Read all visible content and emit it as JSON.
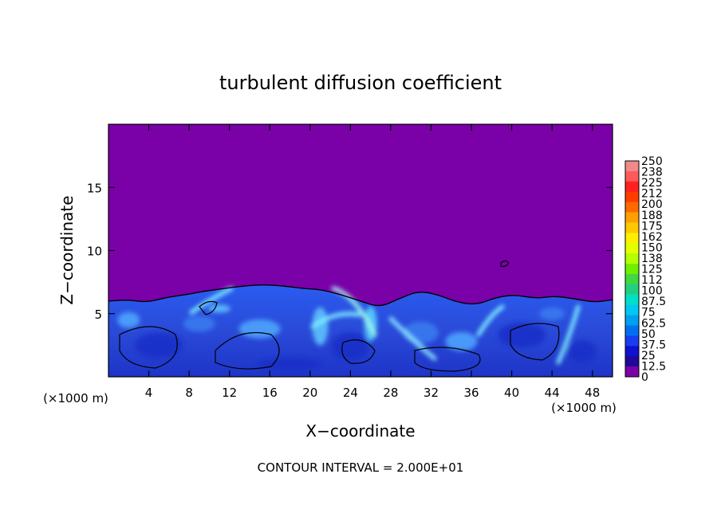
{
  "chart_data": {
    "type": "heatmap",
    "title": "turbulent diffusion coefficient",
    "xlabel": "X−coordinate",
    "ylabel": "Z−coordinate",
    "x_unit_left": "(×1000 m)",
    "x_unit_right": "(×1000 m)",
    "xlim": [
      0,
      50
    ],
    "ylim": [
      0,
      20
    ],
    "x_ticks": [
      4,
      8,
      12,
      16,
      20,
      24,
      28,
      32,
      36,
      40,
      44,
      48
    ],
    "y_ticks": [
      5,
      10,
      15
    ],
    "colorbar": {
      "labels": [
        "250",
        "238",
        "225",
        "212",
        "200",
        "188",
        "175",
        "162",
        "150",
        "138",
        "125",
        "112",
        "100",
        "87.5",
        "75",
        "62.5",
        "50",
        "37.5",
        "25",
        "12.5",
        "0"
      ],
      "colors": [
        "#f08a8a",
        "#ff5a5a",
        "#ff2020",
        "#ff3c00",
        "#ff6a00",
        "#ffa000",
        "#ffc800",
        "#ffee00",
        "#e6ff00",
        "#b4ff00",
        "#70f000",
        "#40d840",
        "#20d080",
        "#00e0c8",
        "#00c8f0",
        "#00a0f0",
        "#0070f0",
        "#1a3cf0",
        "#1010d0",
        "#200898",
        "#7a00a8"
      ]
    },
    "background_color": "#7a00a8",
    "boundary_layer_height": [
      6.0,
      6.1,
      5.9,
      6.3,
      6.5,
      6.8,
      7.0,
      7.2,
      7.3,
      7.2,
      7.0,
      6.9,
      6.5,
      6.0,
      5.5,
      6.2,
      6.8,
      6.5,
      5.9,
      5.7,
      6.3,
      6.5,
      6.2,
      6.4,
      6.2,
      5.9,
      6.1
    ],
    "footer": "CONTOUR INTERVAL = 2.000E+01"
  }
}
